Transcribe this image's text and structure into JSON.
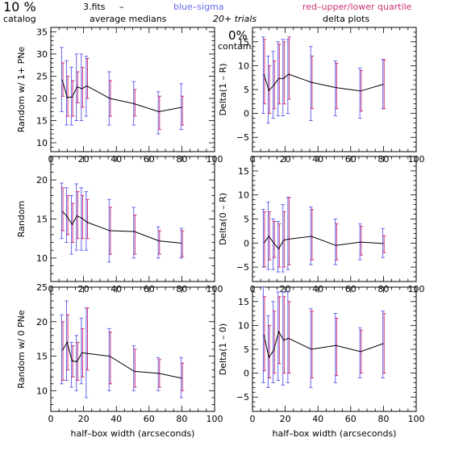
{
  "header": {
    "percent": "10 %",
    "catalog": "catalog",
    "fits": "3.fits",
    "dash": "–",
    "blue_label": "blue–sigma",
    "red_label": "red–upper/lower quartile",
    "medians": "average medians",
    "trials": "20+ trials",
    "delta": "delta plots",
    "contam_pct": "0%",
    "contam": "contam."
  },
  "colors": {
    "axis": "#000000",
    "median_line": "#000000",
    "sigma": "#6666ee",
    "quartile": "#cc3377"
  },
  "chart_data": [
    {
      "type": "line",
      "panel": "left-top",
      "ylabel": "Random w/ 1+ PNe",
      "xlabel": "",
      "xlim": [
        0,
        100
      ],
      "ylim": [
        8,
        36
      ],
      "xticks": [
        "0",
        "20",
        "40",
        "60",
        "80",
        "100"
      ],
      "yticks": [
        "10",
        "15",
        "20",
        "25",
        "30",
        "35"
      ],
      "x": [
        7,
        10,
        13,
        16,
        19,
        22,
        36,
        51,
        66,
        80
      ],
      "series": [
        {
          "values": [
            24.2,
            20.2,
            20.3,
            22.6,
            22.2,
            22.8,
            20.0,
            18.8,
            17.0,
            18.0
          ],
          "sigma": [
            [
              17,
              31.5
            ],
            [
              14,
              28.5
            ],
            [
              14,
              27
            ],
            [
              15,
              30
            ],
            [
              15,
              30
            ],
            [
              16,
              29.5
            ],
            [
              14,
              26
            ],
            [
              14,
              23.8
            ],
            [
              12,
              21.5
            ],
            [
              13,
              23.3
            ]
          ],
          "quartile": [
            [
              20.5,
              28
            ],
            [
              16,
              25
            ],
            [
              16,
              24
            ],
            [
              19,
              26
            ],
            [
              18,
              27
            ],
            [
              20,
              29
            ],
            [
              16,
              24
            ],
            [
              16,
              22
            ],
            [
              13,
              20.5
            ],
            [
              14,
              20.5
            ]
          ]
        }
      ]
    },
    {
      "type": "line",
      "panel": "left-middle",
      "ylabel": "Random",
      "xlabel": "",
      "xlim": [
        0,
        100
      ],
      "ylim": [
        7,
        23
      ],
      "xticks": [
        "0",
        "20",
        "40",
        "60",
        "80",
        "100"
      ],
      "yticks": [
        "10",
        "15",
        "20"
      ],
      "x": [
        7,
        10,
        13,
        16,
        19,
        22,
        36,
        51,
        66,
        80
      ],
      "series": [
        {
          "values": [
            16.0,
            15.3,
            14.3,
            15.4,
            15.1,
            14.6,
            13.5,
            13.4,
            12.2,
            11.9
          ],
          "sigma": [
            [
              12.5,
              19.6
            ],
            [
              12,
              19
            ],
            [
              10.5,
              18
            ],
            [
              11,
              19.5
            ],
            [
              11,
              19
            ],
            [
              11,
              18.5
            ],
            [
              9.5,
              17.5
            ],
            [
              10,
              16.5
            ],
            [
              10,
              14
            ],
            [
              10,
              13.8
            ]
          ],
          "quartile": [
            [
              13.5,
              19
            ],
            [
              13,
              18
            ],
            [
              12,
              17
            ],
            [
              12.5,
              18.5
            ],
            [
              12.5,
              18
            ],
            [
              12.5,
              17.5
            ],
            [
              10.5,
              16.5
            ],
            [
              10.5,
              15.5
            ],
            [
              10.5,
              13.5
            ],
            [
              10.2,
              13.5
            ]
          ]
        }
      ]
    },
    {
      "type": "line",
      "panel": "left-bottom",
      "ylabel": "Random w/ 0 PNe",
      "xlabel": "half–box width (arcseconds)",
      "xlim": [
        0,
        100
      ],
      "ylim": [
        7,
        25
      ],
      "xticks": [
        "0",
        "20",
        "40",
        "60",
        "80",
        "100"
      ],
      "yticks": [
        "10",
        "15",
        "20",
        "25"
      ],
      "x": [
        7,
        10,
        13,
        16,
        19,
        22,
        36,
        51,
        66,
        80
      ],
      "series": [
        {
          "values": [
            15.8,
            17.0,
            14.3,
            14.2,
            15.5,
            15.4,
            15.0,
            12.8,
            12.5,
            11.8
          ],
          "sigma": [
            [
              11,
              21
            ],
            [
              11.5,
              23
            ],
            [
              10.5,
              17
            ],
            [
              10,
              18
            ],
            [
              11,
              20.5
            ],
            [
              9,
              22
            ],
            [
              10,
              19
            ],
            [
              10,
              16.5
            ],
            [
              10,
              14.8
            ],
            [
              9,
              14.8
            ]
          ],
          "quartile": [
            [
              11.5,
              20
            ],
            [
              13,
              21
            ],
            [
              12,
              16.5
            ],
            [
              11.5,
              17
            ],
            [
              12,
              19
            ],
            [
              13,
              22
            ],
            [
              11,
              18.5
            ],
            [
              10.5,
              16
            ],
            [
              10.5,
              14.5
            ],
            [
              10,
              14
            ]
          ]
        }
      ]
    },
    {
      "type": "line",
      "panel": "right-top",
      "ylabel": "Delta(1 – R)",
      "xlabel": "",
      "xlim": [
        0,
        100
      ],
      "ylim": [
        -8,
        18
      ],
      "xticks": [
        "0",
        "20",
        "40",
        "60",
        "80",
        "100"
      ],
      "yticks": [
        "−5",
        "0",
        "5",
        "10",
        "15"
      ],
      "x": [
        7,
        10,
        13,
        16,
        19,
        22,
        36,
        51,
        66,
        80
      ],
      "series": [
        {
          "values": [
            8.2,
            4.8,
            5.9,
            7.3,
            7.3,
            8.2,
            6.5,
            5.4,
            4.7,
            6.1
          ],
          "sigma": [
            [
              0,
              16
            ],
            [
              -2,
              12
            ],
            [
              -1,
              13
            ],
            [
              -0.5,
              15
            ],
            [
              -0.5,
              15.5
            ],
            [
              0,
              15.5
            ],
            [
              -1.5,
              14
            ],
            [
              -0.5,
              11
            ],
            [
              -1,
              9.5
            ],
            [
              1,
              11.3
            ]
          ],
          "quartile": [
            [
              2,
              15.5
            ],
            [
              0,
              10
            ],
            [
              1,
              11
            ],
            [
              2,
              14.5
            ],
            [
              2,
              15
            ],
            [
              3,
              16
            ],
            [
              1,
              12
            ],
            [
              1,
              10.5
            ],
            [
              0.5,
              9
            ],
            [
              1,
              11.2
            ]
          ]
        }
      ]
    },
    {
      "type": "line",
      "panel": "right-middle",
      "ylabel": "Delta(0 – R)",
      "xlabel": "",
      "xlim": [
        0,
        100
      ],
      "ylim": [
        -8,
        18
      ],
      "xticks": [
        "0",
        "20",
        "40",
        "60",
        "80",
        "100"
      ],
      "yticks": [
        "−5",
        "0",
        "5",
        "10",
        "15"
      ],
      "x": [
        7,
        10,
        13,
        16,
        19,
        22,
        36,
        51,
        66,
        80
      ],
      "series": [
        {
          "values": [
            0.0,
            1.4,
            0.0,
            -1.2,
            0.6,
            0.8,
            1.4,
            -0.5,
            0.2,
            -0.1
          ],
          "sigma": [
            [
              -5,
              7
            ],
            [
              -5.5,
              8.5
            ],
            [
              -5.5,
              5
            ],
            [
              -6,
              4.5
            ],
            [
              -6,
              8
            ],
            [
              -5.5,
              9.5
            ],
            [
              -4.5,
              7.5
            ],
            [
              -4.5,
              5
            ],
            [
              -3.5,
              4
            ],
            [
              -3,
              3
            ]
          ],
          "quartile": [
            [
              -5,
              6.5
            ],
            [
              -3.5,
              6.5
            ],
            [
              -3,
              4.5
            ],
            [
              -5,
              4
            ],
            [
              -5,
              6.5
            ],
            [
              -4.5,
              9.5
            ],
            [
              -3.5,
              7
            ],
            [
              -3.5,
              4
            ],
            [
              -2.5,
              3.5
            ],
            [
              -2,
              1.5
            ]
          ]
        }
      ]
    },
    {
      "type": "line",
      "panel": "right-bottom",
      "ylabel": "Delta(1 – 0)",
      "xlabel": "half–box width (arcseconds)",
      "xlim": [
        0,
        100
      ],
      "ylim": [
        -8,
        18
      ],
      "xticks": [
        "0",
        "20",
        "40",
        "60",
        "80",
        "100"
      ],
      "yticks": [
        "−5",
        "0",
        "5",
        "10",
        "15"
      ],
      "x": [
        7,
        10,
        13,
        16,
        19,
        22,
        36,
        51,
        66,
        80
      ],
      "series": [
        {
          "values": [
            8.0,
            3.3,
            4.8,
            8.7,
            6.9,
            7.3,
            5.0,
            5.8,
            4.5,
            6.2
          ],
          "sigma": [
            [
              -2,
              18
            ],
            [
              -3,
              12
            ],
            [
              -2,
              15
            ],
            [
              -1.5,
              17
            ],
            [
              -2.5,
              17
            ],
            [
              -2,
              17
            ],
            [
              -3,
              13.5
            ],
            [
              -2,
              12.5
            ],
            [
              -1,
              9.5
            ],
            [
              -1,
              13
            ]
          ],
          "quartile": [
            [
              0.5,
              16
            ],
            [
              -1,
              10
            ],
            [
              0,
              13
            ],
            [
              2,
              16
            ],
            [
              0,
              16
            ],
            [
              0,
              15
            ],
            [
              -1,
              13
            ],
            [
              -0.5,
              11.5
            ],
            [
              0,
              9
            ],
            [
              0,
              12.5
            ]
          ]
        }
      ]
    }
  ]
}
